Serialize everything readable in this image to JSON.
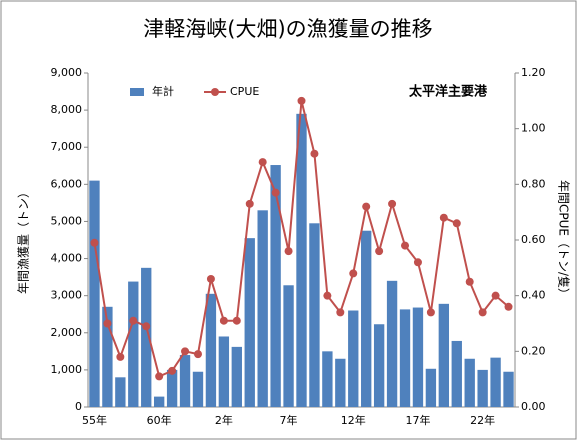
{
  "chart_data": {
    "type": "bar_line",
    "title": "津軽海峡(大畑)の漁獲量の推移",
    "annotation": "太平洋主要港",
    "ylabel": "年間漁獲量（トン）",
    "y2label": "年間CPUE（トン/隻）",
    "categories": [
      "55年",
      null,
      null,
      null,
      null,
      "60年",
      null,
      null,
      null,
      null,
      "2年",
      null,
      null,
      null,
      null,
      "7年",
      null,
      null,
      null,
      null,
      "12年",
      null,
      null,
      null,
      null,
      "17年",
      null,
      null,
      null,
      null,
      "22年",
      null,
      null
    ],
    "series": [
      {
        "name": "年計",
        "type": "bar",
        "color": "#4f81bd",
        "values": [
          6100,
          2700,
          800,
          3380,
          3750,
          280,
          1000,
          1400,
          950,
          3050,
          1900,
          1620,
          4550,
          5300,
          6520,
          3280,
          7900,
          4950,
          1500,
          1300,
          2600,
          4750,
          2230,
          3400,
          2630,
          2680,
          1030,
          2780,
          1780,
          1300,
          1000,
          1330,
          950
        ]
      },
      {
        "name": "CPUE",
        "type": "line",
        "axis": "y2",
        "color": "#c0504d",
        "values": [
          0.59,
          0.3,
          0.18,
          0.31,
          0.29,
          0.11,
          0.13,
          0.2,
          0.19,
          0.46,
          0.31,
          0.31,
          0.73,
          0.88,
          0.77,
          0.56,
          1.1,
          0.91,
          0.4,
          0.34,
          0.48,
          0.72,
          0.56,
          0.73,
          0.58,
          0.52,
          0.34,
          0.68,
          0.66,
          0.45,
          0.34,
          0.4,
          0.36
        ]
      }
    ],
    "ylim": [
      0,
      9000
    ],
    "yticks": [
      0,
      {
        "value": 1000,
        "label": "1,000"
      },
      {
        "value": 2000,
        "label": "2,000"
      },
      {
        "value": 3000,
        "label": "3,000"
      },
      {
        "value": 4000,
        "label": "4,000"
      },
      {
        "value": 5000,
        "label": "5,000"
      },
      {
        "value": 6000,
        "label": "6,000"
      },
      {
        "value": 7000,
        "label": "7,000"
      },
      {
        "value": 8000,
        "label": "8,000"
      },
      {
        "value": 9000,
        "label": "9,000"
      }
    ],
    "y2lim": [
      0,
      1.2
    ],
    "y2ticks": [
      {
        "value": 0,
        "label": "0.00"
      },
      {
        "value": 0.2,
        "label": "0.20"
      },
      {
        "value": 0.4,
        "label": "0.40"
      },
      {
        "value": 0.6,
        "label": "0.60"
      },
      {
        "value": 0.8,
        "label": "0.80"
      },
      {
        "value": 1.0,
        "label": "1.00"
      },
      {
        "value": 1.2,
        "label": "1.20"
      }
    ],
    "legend": "top-left",
    "grid": false
  }
}
